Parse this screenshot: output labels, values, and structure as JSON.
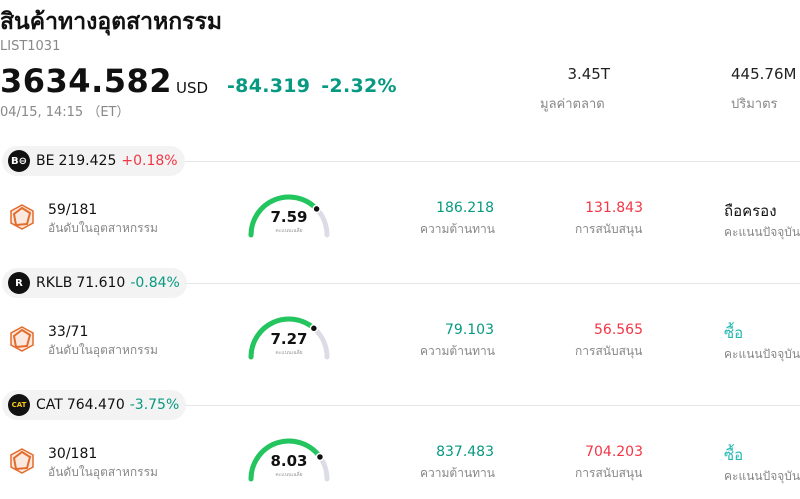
{
  "header": {
    "title": "สินค้าทางอุตสาหกรรม",
    "code": "LIST1031",
    "price": "3634.582",
    "currency": "USD",
    "change": "-84.319",
    "change_pct": "-2.32%",
    "time": "04/15, 14:15 （ET）"
  },
  "stats": {
    "market_cap": {
      "value": "3.45T",
      "label": "มูลค่าตลาด"
    },
    "volume": {
      "value": "445.76M",
      "label": "ปริมาตร"
    }
  },
  "labels": {
    "rank": "อันดับในอุตสาหกรรม",
    "gauge": "คะแนนเฉลี่ย",
    "resistance": "ความต้านทาน",
    "support": "การสนับสนุน",
    "current_score": "คะแนนปัจจุบัน"
  },
  "colors": {
    "up": "#f23645",
    "down": "#089981",
    "gauge": "#22c55e",
    "buy": "#22b8b0"
  },
  "stocks": [
    {
      "symbol": "BE",
      "logo": "B⊖",
      "price": "219.425",
      "change": "+0.18%",
      "direction": "up",
      "rank": "59/181",
      "score": "7.59",
      "score_fraction": 0.759,
      "resistance": "186.218",
      "support": "131.843",
      "rating": "ถือครอง"
    },
    {
      "symbol": "RKLB",
      "logo": "R",
      "price": "71.610",
      "change": "-0.84%",
      "direction": "down",
      "rank": "33/71",
      "score": "7.27",
      "score_fraction": 0.727,
      "resistance": "79.103",
      "support": "56.565",
      "rating": "ซื้อ"
    },
    {
      "symbol": "CAT",
      "logo": "CAT",
      "price": "764.470",
      "change": "-3.75%",
      "direction": "down",
      "rank": "30/181",
      "score": "8.03",
      "score_fraction": 0.803,
      "resistance": "837.483",
      "support": "704.203",
      "rating": "ซื้อ"
    }
  ]
}
